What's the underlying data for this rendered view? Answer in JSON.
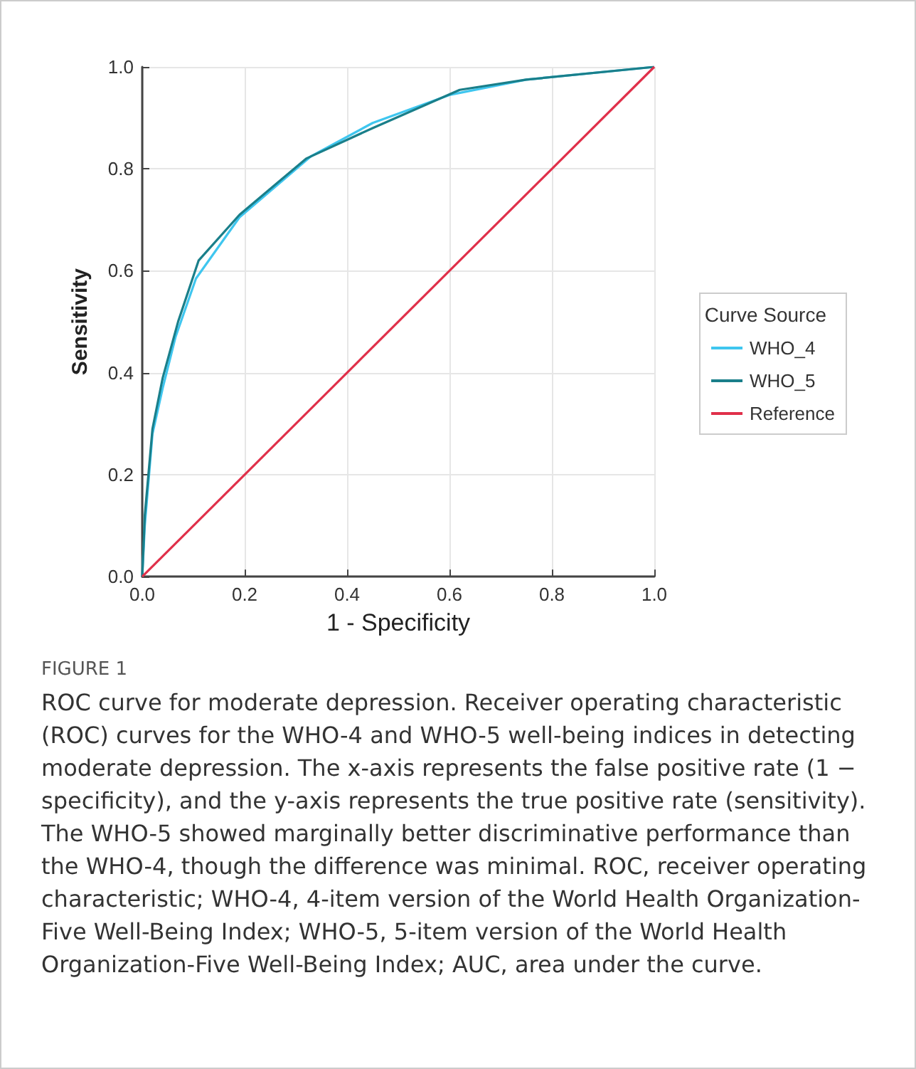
{
  "chart_data": {
    "type": "line",
    "xlabel": "1 - Specificity",
    "ylabel": "Sensitivity",
    "legend_title": "Curve Source",
    "series": [
      {
        "name": "WHO_4",
        "color": "#3fc6ef",
        "x": [
          0,
          0.005,
          0.02,
          0.04,
          0.065,
          0.105,
          0.19,
          0.33,
          0.45,
          0.6,
          0.75,
          1
        ],
        "values": [
          0,
          0.1,
          0.28,
          0.37,
          0.47,
          0.585,
          0.705,
          0.825,
          0.89,
          0.945,
          0.975,
          1
        ]
      },
      {
        "name": "WHO_5",
        "color": "#1a7f8a",
        "x": [
          0,
          0.005,
          0.02,
          0.04,
          0.07,
          0.11,
          0.19,
          0.32,
          0.45,
          0.62,
          0.75,
          1
        ],
        "values": [
          0,
          0.12,
          0.29,
          0.39,
          0.5,
          0.62,
          0.71,
          0.82,
          0.88,
          0.955,
          0.975,
          1
        ]
      },
      {
        "name": "Reference",
        "color": "#e0304a",
        "x": [
          0,
          1
        ],
        "values": [
          0,
          1
        ]
      }
    ],
    "xlim": [
      0,
      1
    ],
    "ylim": [
      0,
      1
    ],
    "xticks": [
      {
        "value": 0,
        "label": "0.0"
      },
      {
        "value": 0.2,
        "label": "0.2"
      },
      {
        "value": 0.4,
        "label": "0.4"
      },
      {
        "value": 0.6,
        "label": "0.6"
      },
      {
        "value": 0.8,
        "label": "0.8"
      },
      {
        "value": 1,
        "label": "1.0"
      }
    ],
    "yticks": [
      {
        "value": 0,
        "label": "0.0"
      },
      {
        "value": 0.2,
        "label": "0.2"
      },
      {
        "value": 0.4,
        "label": "0.4"
      },
      {
        "value": 0.6,
        "label": "0.6"
      },
      {
        "value": 0.8,
        "label": "0.8"
      },
      {
        "value": 1,
        "label": "1.0"
      }
    ],
    "grid": true,
    "legend": "right",
    "marker": "none",
    "line_style": "solid",
    "annotations": [
      "FIGURE 1",
      "ROC curve for moderate depression. Receiver operating characteristic (ROC) curves for the WHO-4 and WHO-5 well-being indices in detecting moderate depression. The x-axis represents the false positive rate (1 − specificity), and the y-axis represents the true positive rate (sensitivity). The WHO-5 showed marginally better discriminative performance than the WHO-4, though the difference was minimal. ROC, receiver operating characteristic; WHO-4, 4-item version of the World Health Organization-Five Well-Being Index; WHO-5, 5-item version of the World Health Organization-Five Well-Being Index; AUC, area under the curve."
    ]
  }
}
